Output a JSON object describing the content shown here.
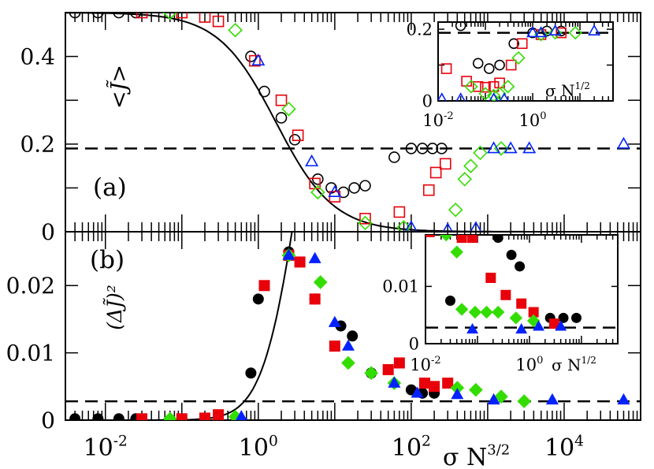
{
  "chart_data": [
    {
      "panel": "a",
      "type": "scatter",
      "panel_label": "(a)",
      "ylabel": "<J̃>",
      "xscale": "log",
      "xlim": [
        0.003,
        100000
      ],
      "ylim": [
        0,
        0.5
      ],
      "yticks": [
        "0",
        "0.2",
        "0.4"
      ],
      "reference_line": {
        "y": 0.19,
        "style": "dashed"
      },
      "fit_curve": "solid sigmoid from 0.5 to 0",
      "series": [
        {
          "name": "black circles",
          "marker": "circle-open",
          "color": "#000000",
          "x": [
            0.004,
            0.008,
            0.015,
            0.025,
            0.8,
            1.2,
            2.0,
            3.0,
            6,
            9,
            13,
            18,
            25,
            60,
            100,
            140,
            190,
            250
          ],
          "y": [
            0.5,
            0.5,
            0.5,
            0.5,
            0.4,
            0.32,
            0.26,
            0.21,
            0.12,
            0.1,
            0.09,
            0.1,
            0.105,
            0.17,
            0.19,
            0.19,
            0.19,
            0.19
          ]
        },
        {
          "name": "red squares",
          "marker": "square-open",
          "color": "#e8000b",
          "x": [
            0.03,
            0.1,
            0.2,
            0.3,
            0.9,
            2.0,
            3.3,
            5.5,
            10,
            25,
            70,
            170,
            210,
            280
          ],
          "y": [
            0.5,
            0.5,
            0.49,
            0.48,
            0.39,
            0.3,
            0.22,
            0.11,
            0.08,
            0.03,
            0.045,
            0.095,
            0.135,
            0.155
          ]
        },
        {
          "name": "green diamonds",
          "marker": "diamond-open",
          "color": "#33dd00",
          "x": [
            0.07,
            0.5,
            2.5,
            6,
            25,
            80,
            380,
            500,
            600,
            800,
            1500
          ],
          "y": [
            0.5,
            0.46,
            0.28,
            0.09,
            0.02,
            0.01,
            0.05,
            0.12,
            0.15,
            0.18,
            0.19
          ]
        },
        {
          "name": "blue triangles",
          "marker": "triangle-open",
          "color": "#0022ff",
          "x": [
            1.0,
            5.0,
            10,
            100,
            300,
            700,
            1200,
            2000,
            3500,
            60000
          ],
          "y": [
            0.39,
            0.16,
            0.09,
            0.01,
            0.005,
            0.008,
            0.19,
            0.19,
            0.19,
            0.2
          ]
        }
      ],
      "inset": {
        "xlabel": "σ N^1/2",
        "xscale": "log",
        "xlim": [
          0.01,
          50
        ],
        "ylim": [
          0,
          0.22
        ],
        "yticks": [
          "0",
          "0.2"
        ],
        "xticks": [
          {
            "base": "10",
            "exp": "-2"
          },
          {
            "base": "10",
            "exp": "0"
          }
        ],
        "reference_line": {
          "y": 0.19,
          "style": "dashed"
        },
        "series": [
          {
            "name": "black circles",
            "marker": "circle-open",
            "color": "#000000",
            "x": [
              0.03,
              0.07,
              0.12,
              0.2,
              0.4,
              1.0,
              2.0,
              4.0
            ],
            "y": [
              0.21,
              0.105,
              0.09,
              0.1,
              0.16,
              0.19,
              0.195,
              0.195
            ]
          },
          {
            "name": "red squares",
            "marker": "square-open",
            "color": "#e8000b",
            "x": [
              0.015,
              0.04,
              0.07,
              0.1,
              0.15,
              0.2,
              0.35,
              0.6,
              1.5,
              4.0
            ],
            "y": [
              0.09,
              0.055,
              0.04,
              0.038,
              0.04,
              0.05,
              0.1,
              0.16,
              0.185,
              0.19
            ]
          },
          {
            "name": "green diamonds",
            "marker": "diamond-open",
            "color": "#33dd00",
            "x": [
              0.05,
              0.1,
              0.15,
              0.2,
              0.3,
              0.5,
              1.5,
              3.0,
              8.0
            ],
            "y": [
              0.04,
              0.02,
              0.015,
              0.02,
              0.04,
              0.12,
              0.185,
              0.19,
              0.19
            ]
          },
          {
            "name": "blue triangles",
            "marker": "triangle-open",
            "color": "#0022ff",
            "x": [
              0.012,
              0.03,
              0.15,
              0.25,
              1.0,
              1.5,
              3.0,
              20
            ],
            "y": [
              0.005,
              0.005,
              0.005,
              0.005,
              0.19,
              0.19,
              0.195,
              0.195
            ]
          }
        ]
      }
    },
    {
      "panel": "b",
      "type": "scatter",
      "panel_label": "(b)",
      "ylabel": "(ΔJ̃)²",
      "xlabel": "σ N^3/2",
      "xscale": "log",
      "xlim": [
        0.003,
        100000
      ],
      "ylim": [
        0,
        0.028
      ],
      "yticks": [
        "0",
        "0.01",
        "0.02"
      ],
      "xticks": [
        {
          "base": "10",
          "exp": "-2"
        },
        {
          "base": "10",
          "exp": "0"
        },
        {
          "base": "10",
          "exp": "2"
        },
        {
          "base": "10",
          "exp": "4"
        }
      ],
      "reference_line": {
        "y": 0.0028,
        "style": "dashed"
      },
      "fit_curve": "solid peaked curve with maximum near x = 2.5",
      "series": [
        {
          "name": "black filled circles",
          "marker": "circle-filled",
          "color": "#000000",
          "x": [
            0.004,
            0.008,
            0.015,
            0.025,
            0.8,
            1.0,
            2.5,
            5.5,
            12,
            17,
            30,
            100,
            140,
            200
          ],
          "y": [
            0.0002,
            0.0002,
            0.0002,
            0.0002,
            0.007,
            0.018,
            0.025,
            0.018,
            0.014,
            0.0125,
            0.007,
            0.0045,
            0.004,
            0.004
          ]
        },
        {
          "name": "red filled squares",
          "marker": "square-filled",
          "color": "#e8000b",
          "x": [
            0.03,
            0.1,
            0.2,
            0.3,
            1.2,
            2.5,
            3.5,
            5.5,
            10,
            50,
            70,
            150,
            200,
            300
          ],
          "y": [
            0.0002,
            0.0002,
            0.0003,
            0.0008,
            0.02,
            0.0245,
            0.0235,
            0.018,
            0.011,
            0.0075,
            0.0085,
            0.0055,
            0.005,
            0.0055
          ]
        },
        {
          "name": "green filled diamonds",
          "marker": "diamond-filled",
          "color": "#33dd00",
          "x": [
            0.07,
            0.5,
            2.5,
            6.5,
            15,
            30,
            60,
            400,
            700,
            1500,
            3000
          ],
          "y": [
            0.0002,
            0.0005,
            0.0245,
            0.0205,
            0.0085,
            0.007,
            0.0055,
            0.0048,
            0.0045,
            0.0035,
            0.0028
          ]
        },
        {
          "name": "blue filled triangles",
          "marker": "triangle-filled",
          "color": "#0022ff",
          "x": [
            0.6,
            2.5,
            5.5,
            10,
            15,
            60,
            120,
            400,
            1200,
            7000,
            60000
          ],
          "y": [
            0.0005,
            0.0245,
            0.024,
            0.0145,
            0.011,
            0.0055,
            0.004,
            0.0038,
            0.003,
            0.003,
            0.003
          ]
        }
      ],
      "inset": {
        "xlabel": "σ N^1/2",
        "xscale": "log",
        "xlim": [
          0.01,
          50
        ],
        "ylim": [
          0,
          0.019
        ],
        "yticks": [
          "0",
          "0.01"
        ],
        "xticks": [
          {
            "base": "10",
            "exp": "-2"
          },
          {
            "base": "10",
            "exp": "0"
          }
        ],
        "reference_line": {
          "y": 0.0028,
          "style": "dashed"
        },
        "series": [
          {
            "name": "black filled circles",
            "marker": "circle-filled",
            "color": "#000000",
            "x": [
              0.03,
              0.25,
              0.45,
              0.65,
              2.5,
              4.5,
              8.0
            ],
            "y": [
              0.0075,
              0.0185,
              0.0155,
              0.0135,
              0.0045,
              0.0045,
              0.0045
            ]
          },
          {
            "name": "red filled squares",
            "marker": "square-filled",
            "color": "#e8000b",
            "x": [
              0.012,
              0.05,
              0.08,
              0.18,
              0.35,
              0.7,
              1.2,
              3.0
            ],
            "y": [
              0.0195,
              0.0185,
              0.0185,
              0.0115,
              0.0085,
              0.007,
              0.0055,
              0.0035
            ]
          },
          {
            "name": "green filled diamonds",
            "marker": "diamond-filled",
            "color": "#33dd00",
            "x": [
              0.025,
              0.04,
              0.05,
              0.09,
              0.15,
              0.25,
              0.55,
              1.2
            ],
            "y": [
              0.019,
              0.016,
              0.006,
              0.0055,
              0.0055,
              0.0055,
              0.0045,
              0.004
            ]
          },
          {
            "name": "blue filled triangles",
            "marker": "triangle-filled",
            "color": "#0022ff",
            "x": [
              0.08,
              0.7,
              1.5,
              4.0
            ],
            "y": [
              0.0025,
              0.0025,
              0.003,
              0.003
            ]
          }
        ]
      }
    }
  ]
}
